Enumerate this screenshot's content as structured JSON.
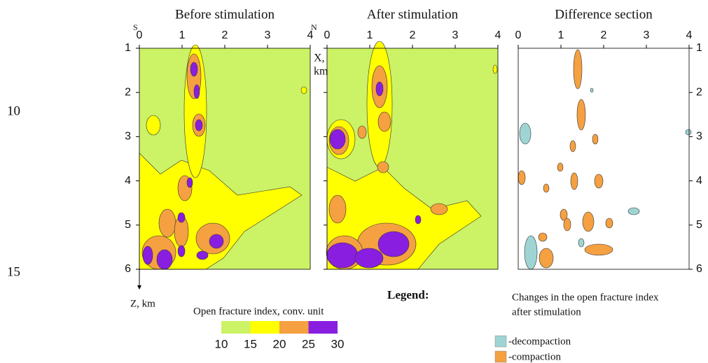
{
  "line_numbers": [
    "10",
    "15"
  ],
  "panels": [
    {
      "title": "Before stimulation"
    },
    {
      "title": "After stimulation"
    },
    {
      "title": "Difference  section"
    }
  ],
  "x_ticks": [
    "0",
    "1",
    "2",
    "3",
    "4"
  ],
  "z_ticks": [
    "1",
    "2",
    "3",
    "4",
    "5",
    "6"
  ],
  "compass": {
    "south": "S",
    "north": "N"
  },
  "x_axis_label": [
    "X,",
    "km"
  ],
  "z_axis_label": "Z, km",
  "legend_title": "Legend:",
  "colorbar": {
    "title": "Open fracture index, conv. unit",
    "colors": [
      "#ccf266",
      "#ffff00",
      "#f5a041",
      "#8a1ee0"
    ],
    "labels": [
      "10",
      "15",
      "20",
      "25",
      "30"
    ]
  },
  "difference_legend": {
    "title": [
      "Changes in the open fracture index",
      "after stimulation"
    ],
    "items": [
      {
        "label": "-decompaction",
        "color": "#9fd4d4"
      },
      {
        "label": "-compaction",
        "color": "#f5a041"
      }
    ]
  }
}
